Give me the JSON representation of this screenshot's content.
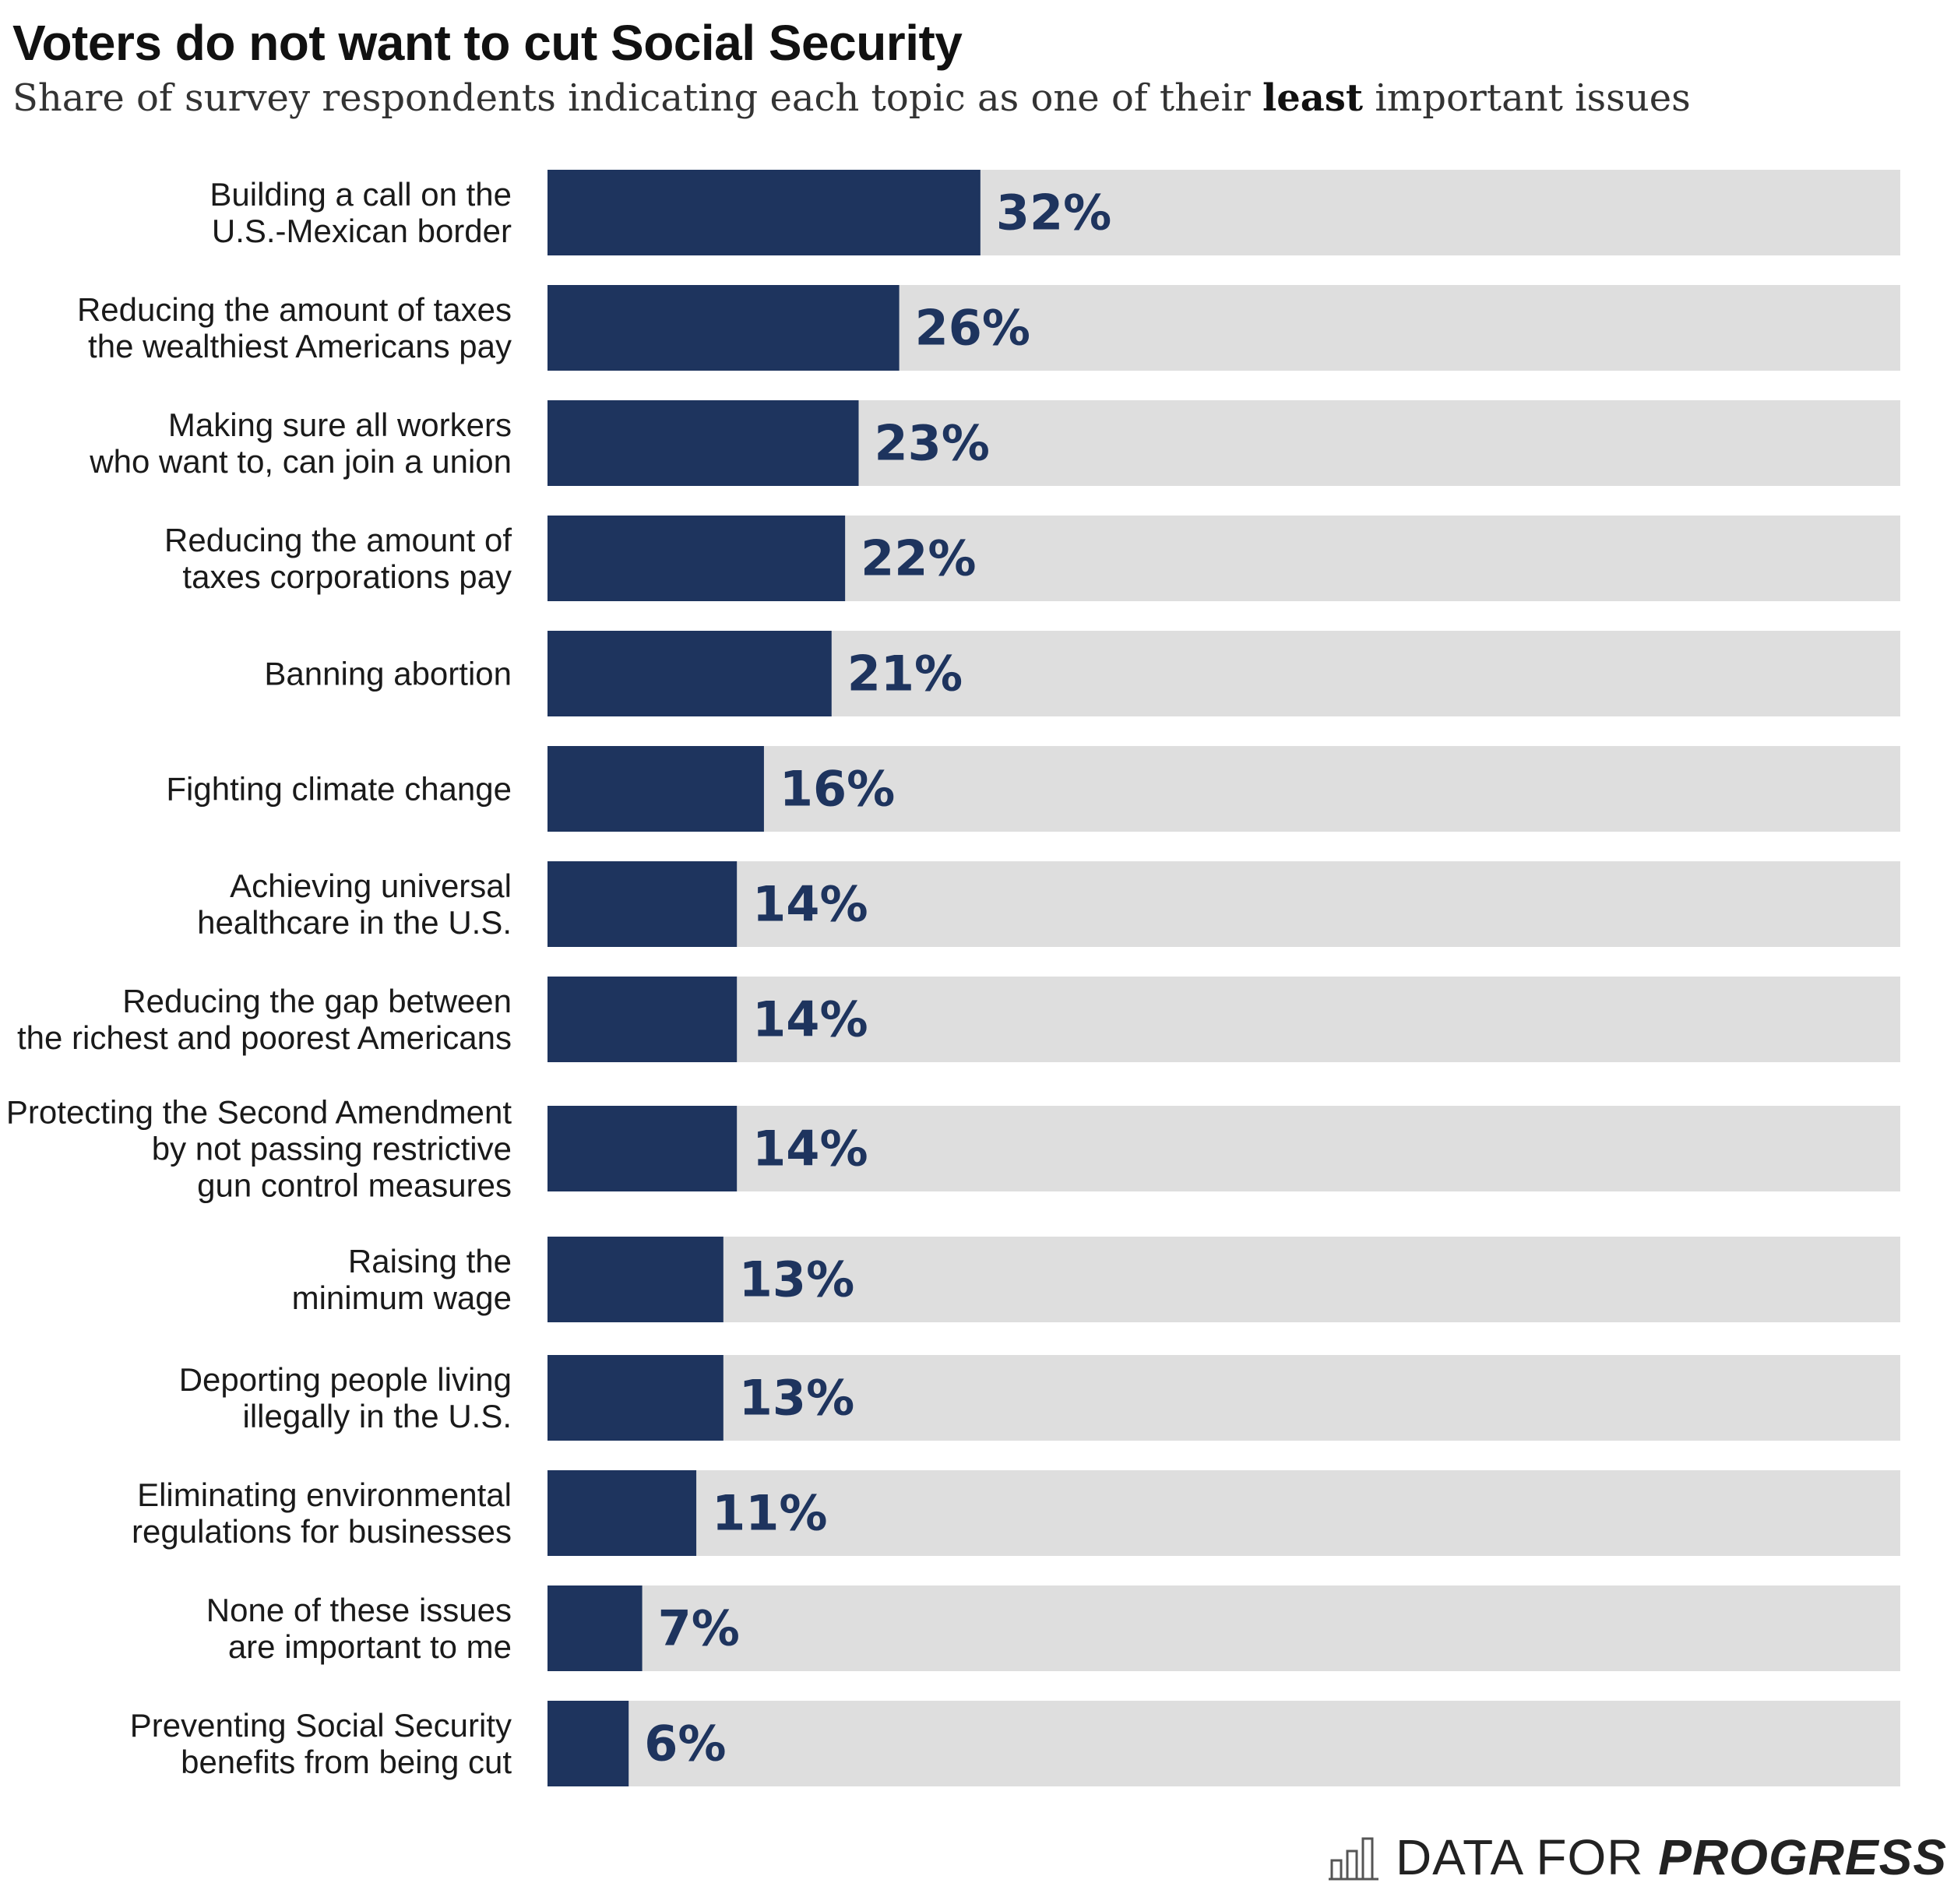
{
  "title": "Voters do not want to cut Social Security",
  "subtitle": {
    "before": "Share of survey respondents indicating each topic as one of their ",
    "emphasis": "least",
    "after": " important issues"
  },
  "footer": {
    "brand_regular": "DATA FOR ",
    "brand_bold": "PROGRESS",
    "logo_icon": "bar-chart-logo-icon"
  },
  "colors": {
    "bar": "#1e345e",
    "track": "#dedede",
    "label": "#1e345e"
  },
  "chart_data": {
    "type": "bar",
    "orientation": "horizontal",
    "value_unit": "%",
    "xlim": [
      0,
      100
    ],
    "categories": [
      [
        "Building a call on the",
        "U.S.-Mexican border"
      ],
      [
        "Reducing the amount of taxes",
        "the wealthiest Americans pay"
      ],
      [
        "Making sure all workers",
        "who want to, can join a union"
      ],
      [
        "Reducing the amount of",
        "taxes corporations pay"
      ],
      [
        "Banning abortion"
      ],
      [
        "Fighting climate change"
      ],
      [
        "Achieving universal",
        "healthcare in the U.S."
      ],
      [
        "Reducing the gap between",
        "the richest and poorest Americans"
      ],
      [
        "Protecting the Second Amendment",
        "by not passing restrictive",
        "gun control measures"
      ],
      [
        "Raising the",
        "minimum wage"
      ],
      [
        "Deporting people living",
        "illegally in the U.S."
      ],
      [
        "Eliminating environmental",
        "regulations for businesses"
      ],
      [
        "None of these issues",
        "are important to me"
      ],
      [
        "Preventing Social Security",
        "benefits from being cut"
      ]
    ],
    "values": [
      32,
      26,
      23,
      22,
      21,
      16,
      14,
      14,
      14,
      13,
      13,
      11,
      7,
      6
    ],
    "data_labels": [
      "32%",
      "26%",
      "23%",
      "22%",
      "21%",
      "16%",
      "14%",
      "14%",
      "14%",
      "13%",
      "13%",
      "11%",
      "7%",
      "6%"
    ]
  }
}
